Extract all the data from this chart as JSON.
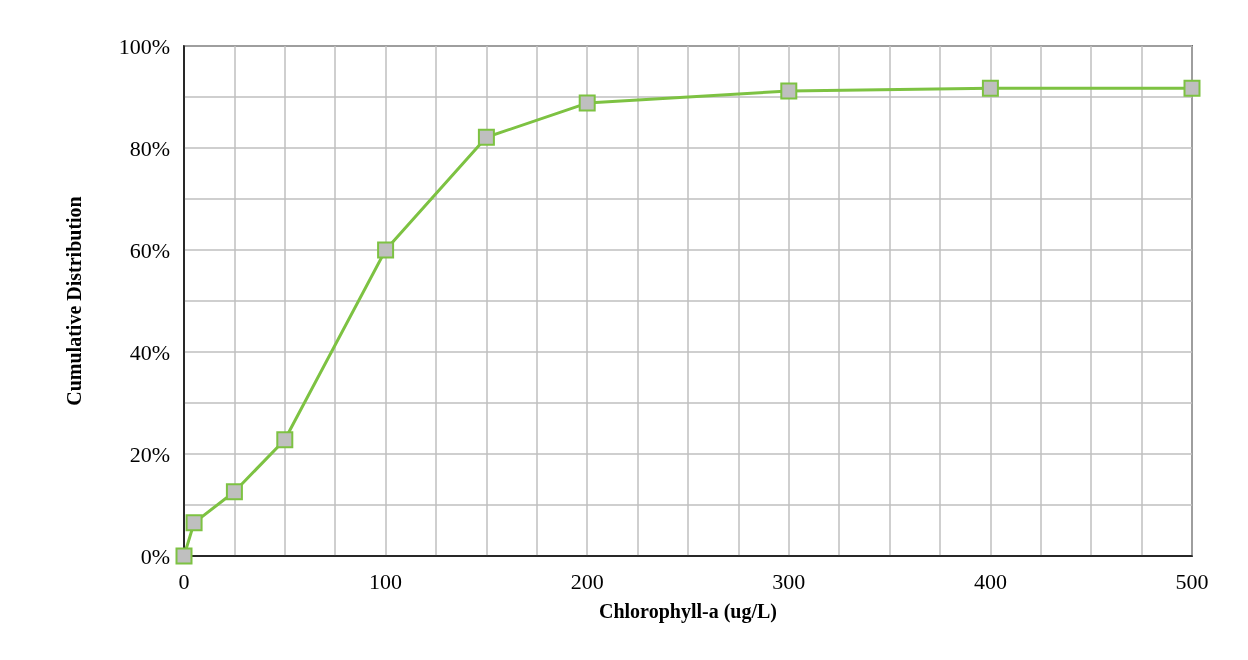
{
  "chart_data": {
    "type": "line",
    "xlabel": "Chlorophyll-a (ug/L)",
    "ylabel": "Cumulative Distribution",
    "series": [
      {
        "color": "#7dc242",
        "x": [
          0,
          5,
          25,
          50,
          100,
          150,
          200,
          300,
          400,
          500
        ],
        "values": [
          0,
          6.5,
          12.6,
          22.8,
          60,
          82.1,
          88.8,
          91.2,
          91.7,
          91.7
        ]
      }
    ],
    "xlim": [
      0,
      500
    ],
    "xticks": [
      0,
      {
        "value": 25,
        "label": null
      },
      {
        "value": 50,
        "label": null
      },
      {
        "value": 75,
        "label": null
      },
      100,
      {
        "value": 125,
        "label": null
      },
      {
        "value": 150,
        "label": null
      },
      {
        "value": 175,
        "label": null
      },
      200,
      {
        "value": 225,
        "label": null
      },
      {
        "value": 250,
        "label": null
      },
      {
        "value": 275,
        "label": null
      },
      300,
      {
        "value": 325,
        "label": null
      },
      {
        "value": 350,
        "label": null
      },
      {
        "value": 375,
        "label": null
      },
      400,
      {
        "value": 425,
        "label": null
      },
      {
        "value": 450,
        "label": null
      },
      {
        "value": 475,
        "label": null
      },
      500
    ],
    "ylim": [
      0,
      100
    ],
    "yticks": [
      {
        "value": 0,
        "label": "0%"
      },
      {
        "value": 10,
        "label": null
      },
      {
        "value": 20,
        "label": "20%"
      },
      {
        "value": 30,
        "label": null
      },
      {
        "value": 40,
        "label": "40%"
      },
      {
        "value": 50,
        "label": null
      },
      {
        "value": 60,
        "label": "60%"
      },
      {
        "value": 70,
        "label": null
      },
      {
        "value": 80,
        "label": "80%"
      },
      {
        "value": 90,
        "label": null
      },
      {
        "value": 100,
        "label": "100%"
      }
    ],
    "grid": true,
    "marker": "square",
    "line_style": "solid"
  }
}
